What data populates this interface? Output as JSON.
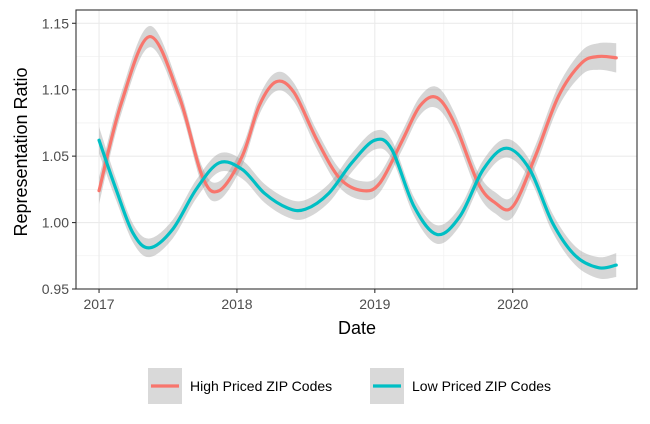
{
  "chart_data": {
    "type": "line",
    "xlabel": "Date",
    "ylabel": "Representation Ratio",
    "xlim": [
      "2016-11-01",
      "2020-11-25"
    ],
    "ylim": [
      0.95,
      1.16
    ],
    "x_ticks": [
      {
        "date": "2017-01-01",
        "label": "2017"
      },
      {
        "date": "2018-01-01",
        "label": "2018"
      },
      {
        "date": "2019-01-01",
        "label": "2019"
      },
      {
        "date": "2020-01-01",
        "label": "2020"
      }
    ],
    "y_ticks": [
      {
        "value": 0.95,
        "label": "0.95"
      },
      {
        "value": 1.0,
        "label": "1.00"
      },
      {
        "value": 1.05,
        "label": "1.05"
      },
      {
        "value": 1.1,
        "label": "1.10"
      },
      {
        "value": 1.15,
        "label": "1.15"
      }
    ],
    "grid": true,
    "legend_position": "bottom",
    "series": [
      {
        "name": "High Priced ZIP Codes",
        "color": "#F8766D",
        "x": [
          "2017-01-01",
          "2017-03-01",
          "2017-05-15",
          "2017-08-01",
          "2017-10-01",
          "2017-11-15",
          "2018-01-15",
          "2018-03-01",
          "2018-04-15",
          "2018-06-01",
          "2018-08-01",
          "2018-10-01",
          "2018-12-01",
          "2019-01-15",
          "2019-03-15",
          "2019-05-01",
          "2019-06-15",
          "2019-08-01",
          "2019-10-01",
          "2019-11-15",
          "2020-01-01",
          "2020-03-01",
          "2020-05-01",
          "2020-07-01",
          "2020-08-15",
          "2020-10-01"
        ],
        "y": [
          1.024,
          1.09,
          1.14,
          1.095,
          1.035,
          1.024,
          1.05,
          1.088,
          1.106,
          1.098,
          1.062,
          1.033,
          1.024,
          1.03,
          1.062,
          1.088,
          1.094,
          1.074,
          1.03,
          1.015,
          1.012,
          1.05,
          1.095,
          1.12,
          1.125,
          1.124
        ],
        "ci_halfwidth": [
          0.01,
          0.008,
          0.008,
          0.007,
          0.007,
          0.007,
          0.007,
          0.007,
          0.007,
          0.007,
          0.007,
          0.007,
          0.007,
          0.007,
          0.007,
          0.007,
          0.008,
          0.008,
          0.008,
          0.008,
          0.008,
          0.008,
          0.008,
          0.009,
          0.01,
          0.011
        ]
      },
      {
        "name": "Low Priced ZIP Codes",
        "color": "#00BFC4",
        "x": [
          "2017-01-01",
          "2017-02-15",
          "2017-04-01",
          "2017-05-15",
          "2017-07-15",
          "2017-09-15",
          "2017-11-15",
          "2018-01-15",
          "2018-03-15",
          "2018-05-15",
          "2018-07-01",
          "2018-09-01",
          "2018-11-01",
          "2019-01-01",
          "2019-02-15",
          "2019-04-15",
          "2019-06-15",
          "2019-08-15",
          "2019-10-15",
          "2019-12-15",
          "2020-02-15",
          "2020-04-15",
          "2020-06-15",
          "2020-08-15",
          "2020-10-01"
        ],
        "y": [
          1.062,
          1.025,
          0.992,
          0.981,
          0.995,
          1.025,
          1.045,
          1.04,
          1.022,
          1.011,
          1.01,
          1.022,
          1.045,
          1.062,
          1.055,
          1.012,
          0.991,
          1.005,
          1.04,
          1.056,
          1.04,
          1.0,
          0.975,
          0.966,
          0.968
        ],
        "ci_halfwidth": [
          0.01,
          0.008,
          0.007,
          0.007,
          0.007,
          0.007,
          0.007,
          0.007,
          0.007,
          0.007,
          0.007,
          0.007,
          0.007,
          0.007,
          0.007,
          0.007,
          0.007,
          0.007,
          0.007,
          0.007,
          0.007,
          0.007,
          0.007,
          0.008,
          0.009
        ]
      }
    ]
  }
}
